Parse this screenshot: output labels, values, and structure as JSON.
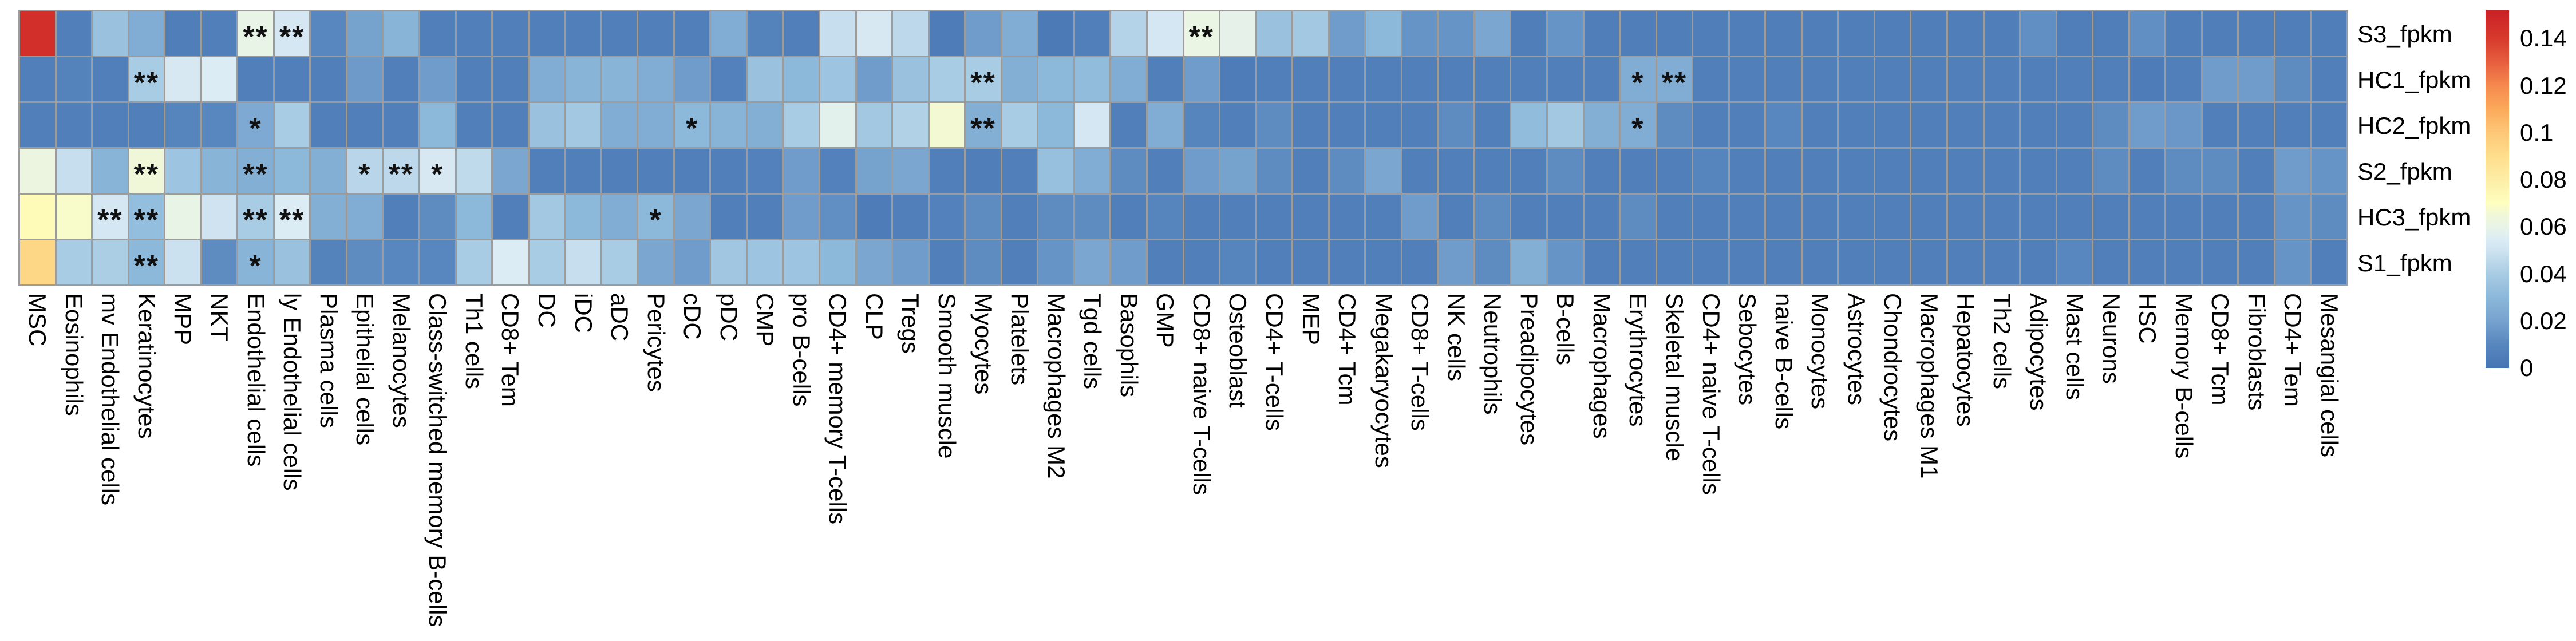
{
  "chart_data": {
    "type": "heatmap",
    "title": "",
    "legend_position": "right",
    "grid_line_color": "#9c9c9c",
    "rows": [
      "S3_fpkm",
      "HC1_fpkm",
      "HC2_fpkm",
      "S2_fpkm",
      "HC3_fpkm",
      "S1_fpkm"
    ],
    "columns": [
      "MSC",
      "Eosinophils",
      "mv Endothelial cells",
      "Keratinocytes",
      "MPP",
      "NKT",
      "Endothelial cells",
      "ly Endothelial cells",
      "Plasma cells",
      "Epithelial cells",
      "Melanocytes",
      "Class-switched memory B-cells",
      "Th1 cells",
      "CD8+ Tem",
      "DC",
      "iDC",
      "aDC",
      "Pericytes",
      "cDC",
      "pDC",
      "CMP",
      "pro B-cells",
      "CD4+ memory T-cells",
      "CLP",
      "Tregs",
      "Smooth muscle",
      "Myocytes",
      "Platelets",
      "Macrophages M2",
      "Tgd cells",
      "Basophils",
      "GMP",
      "CD8+ naive T-cells",
      "Osteoblast",
      "CD4+ T-cells",
      "MEP",
      "CD4+ Tcm",
      "Megakaryocytes",
      "CD8+ T-cells",
      "NK cells",
      "Neutrophils",
      "Preadipocytes",
      "B-cells",
      "Macrophages",
      "Erythrocytes",
      "Skeletal muscle",
      "CD4+ naive T-cells",
      "Sebocytes",
      "naive B-cells",
      "Monocytes",
      "Astrocytes",
      "Chondrocytes",
      "Macrophages M1",
      "Hepatocytes",
      "Th2 cells",
      "Adipocytes",
      "Mast cells",
      "Neurons",
      "HSC",
      "Memory B-cells",
      "CD8+ Tcm",
      "Fibroblasts",
      "CD4+ Tem",
      "Mesangial cells"
    ],
    "values": [
      [
        0.145,
        0.006,
        0.035,
        0.025,
        0.005,
        0.006,
        0.06,
        0.052,
        0.01,
        0.02,
        0.028,
        0.006,
        0.006,
        0.006,
        0.006,
        0.006,
        0.006,
        0.006,
        0.006,
        0.025,
        0.008,
        0.006,
        0.048,
        0.053,
        0.045,
        0.004,
        0.018,
        0.025,
        0.003,
        0.006,
        0.043,
        0.052,
        0.061,
        0.059,
        0.035,
        0.038,
        0.018,
        0.03,
        0.015,
        0.015,
        0.022,
        0.005,
        0.015,
        0.005,
        0.005,
        0.005,
        0.005,
        0.005,
        0.005,
        0.005,
        0.005,
        0.005,
        0.005,
        0.005,
        0.005,
        0.013,
        0.005,
        0.005,
        0.013,
        0.005,
        0.005,
        0.005,
        0.005,
        0.005
      ],
      [
        0.006,
        0.008,
        0.006,
        0.04,
        0.053,
        0.055,
        0.006,
        0.006,
        0.006,
        0.017,
        0.006,
        0.018,
        0.006,
        0.006,
        0.025,
        0.028,
        0.028,
        0.025,
        0.018,
        0.007,
        0.035,
        0.03,
        0.036,
        0.018,
        0.035,
        0.04,
        0.04,
        0.026,
        0.03,
        0.032,
        0.025,
        0.006,
        0.018,
        0.004,
        0.006,
        0.006,
        0.006,
        0.006,
        0.006,
        0.006,
        0.006,
        0.006,
        0.006,
        0.006,
        0.025,
        0.025,
        0.006,
        0.006,
        0.006,
        0.006,
        0.006,
        0.006,
        0.006,
        0.006,
        0.006,
        0.006,
        0.006,
        0.006,
        0.004,
        0.006,
        0.018,
        0.018,
        0.012,
        0.006
      ],
      [
        0.006,
        0.006,
        0.006,
        0.006,
        0.009,
        0.01,
        0.023,
        0.04,
        0.006,
        0.006,
        0.006,
        0.03,
        0.006,
        0.006,
        0.035,
        0.038,
        0.025,
        0.025,
        0.03,
        0.028,
        0.026,
        0.04,
        0.058,
        0.038,
        0.042,
        0.066,
        0.026,
        0.04,
        0.03,
        0.052,
        0.006,
        0.025,
        0.009,
        0.006,
        0.012,
        0.006,
        0.006,
        0.006,
        0.006,
        0.012,
        0.006,
        0.032,
        0.038,
        0.026,
        0.025,
        0.012,
        0.006,
        0.006,
        0.01,
        0.006,
        0.006,
        0.006,
        0.006,
        0.006,
        0.006,
        0.006,
        0.006,
        0.012,
        0.018,
        0.016,
        0.006,
        0.006,
        0.006,
        0.006
      ],
      [
        0.062,
        0.048,
        0.028,
        0.065,
        0.036,
        0.028,
        0.026,
        0.03,
        0.026,
        0.044,
        0.045,
        0.053,
        0.046,
        0.022,
        0.006,
        0.006,
        0.006,
        0.006,
        0.006,
        0.006,
        0.007,
        0.018,
        0.007,
        0.02,
        0.022,
        0.006,
        0.005,
        0.006,
        0.034,
        0.025,
        0.012,
        0.006,
        0.018,
        0.02,
        0.012,
        0.006,
        0.012,
        0.022,
        0.006,
        0.006,
        0.006,
        0.006,
        0.012,
        0.006,
        0.006,
        0.006,
        0.009,
        0.006,
        0.006,
        0.006,
        0.006,
        0.006,
        0.006,
        0.006,
        0.006,
        0.006,
        0.006,
        0.012,
        0.006,
        0.012,
        0.012,
        0.006,
        0.018,
        0.015
      ],
      [
        0.073,
        0.068,
        0.052,
        0.033,
        0.06,
        0.05,
        0.04,
        0.055,
        0.026,
        0.025,
        0.006,
        0.012,
        0.03,
        0.006,
        0.038,
        0.03,
        0.025,
        0.03,
        0.022,
        0.006,
        0.006,
        0.018,
        0.013,
        0.004,
        0.006,
        0.007,
        0.012,
        0.006,
        0.012,
        0.012,
        0.006,
        0.009,
        0.006,
        0.006,
        0.006,
        0.006,
        0.006,
        0.006,
        0.018,
        0.006,
        0.012,
        0.006,
        0.006,
        0.006,
        0.012,
        0.006,
        0.006,
        0.006,
        0.006,
        0.006,
        0.006,
        0.006,
        0.006,
        0.006,
        0.006,
        0.006,
        0.006,
        0.006,
        0.006,
        0.006,
        0.006,
        0.006,
        0.015,
        0.012
      ],
      [
        0.093,
        0.04,
        0.041,
        0.03,
        0.049,
        0.012,
        0.028,
        0.035,
        0.008,
        0.012,
        0.01,
        0.01,
        0.04,
        0.055,
        0.04,
        0.048,
        0.04,
        0.022,
        0.018,
        0.037,
        0.036,
        0.036,
        0.03,
        0.022,
        0.018,
        0.006,
        0.012,
        0.006,
        0.015,
        0.022,
        0.018,
        0.006,
        0.006,
        0.009,
        0.006,
        0.006,
        0.006,
        0.006,
        0.006,
        0.018,
        0.012,
        0.026,
        0.015,
        0.006,
        0.006,
        0.006,
        0.006,
        0.006,
        0.006,
        0.006,
        0.006,
        0.006,
        0.006,
        0.006,
        0.006,
        0.006,
        0.01,
        0.006,
        0.006,
        0.006,
        0.006,
        0.006,
        0.015,
        0.006
      ]
    ],
    "significance": [
      {
        "row": 0,
        "col": 6,
        "stars": "**"
      },
      {
        "row": 0,
        "col": 7,
        "stars": "**"
      },
      {
        "row": 0,
        "col": 32,
        "stars": "**"
      },
      {
        "row": 1,
        "col": 3,
        "stars": "**"
      },
      {
        "row": 1,
        "col": 26,
        "stars": "**"
      },
      {
        "row": 1,
        "col": 44,
        "stars": "*"
      },
      {
        "row": 1,
        "col": 45,
        "stars": "**"
      },
      {
        "row": 2,
        "col": 6,
        "stars": "*"
      },
      {
        "row": 2,
        "col": 18,
        "stars": "*"
      },
      {
        "row": 2,
        "col": 26,
        "stars": "**"
      },
      {
        "row": 2,
        "col": 44,
        "stars": "*"
      },
      {
        "row": 3,
        "col": 3,
        "stars": "**"
      },
      {
        "row": 3,
        "col": 6,
        "stars": "**"
      },
      {
        "row": 3,
        "col": 9,
        "stars": "*"
      },
      {
        "row": 3,
        "col": 10,
        "stars": "**"
      },
      {
        "row": 3,
        "col": 11,
        "stars": "*"
      },
      {
        "row": 4,
        "col": 2,
        "stars": "**"
      },
      {
        "row": 4,
        "col": 3,
        "stars": "**"
      },
      {
        "row": 4,
        "col": 6,
        "stars": "**"
      },
      {
        "row": 4,
        "col": 7,
        "stars": "**"
      },
      {
        "row": 4,
        "col": 17,
        "stars": "*"
      },
      {
        "row": 5,
        "col": 3,
        "stars": "**"
      },
      {
        "row": 5,
        "col": 6,
        "stars": "*"
      }
    ]
  },
  "colorbar": {
    "vmin": 0,
    "vmax": 0.152,
    "ticks": [
      0,
      0.02,
      0.04,
      0.06,
      0.08,
      0.1,
      0.12,
      0.14
    ],
    "tick_labels": [
      "0",
      "0.02",
      "0.04",
      "0.06",
      "0.08",
      "0.1",
      "0.12",
      "0.14"
    ],
    "stops": [
      {
        "v": 0.0,
        "c": "#4575b4"
      },
      {
        "v": 0.01,
        "c": "#5886be"
      },
      {
        "v": 0.02,
        "c": "#76a2ce"
      },
      {
        "v": 0.03,
        "c": "#8cb8da"
      },
      {
        "v": 0.04,
        "c": "#a8cce4"
      },
      {
        "v": 0.05,
        "c": "#cfe3f0"
      },
      {
        "v": 0.055,
        "c": "#dcecf5"
      },
      {
        "v": 0.06,
        "c": "#e8f4e6"
      },
      {
        "v": 0.065,
        "c": "#f0f7d8"
      },
      {
        "v": 0.07,
        "c": "#feffc0"
      },
      {
        "v": 0.08,
        "c": "#fdeda6"
      },
      {
        "v": 0.09,
        "c": "#fede8c"
      },
      {
        "v": 0.1,
        "c": "#fdc877"
      },
      {
        "v": 0.11,
        "c": "#fca95b"
      },
      {
        "v": 0.12,
        "c": "#f5894e"
      },
      {
        "v": 0.13,
        "c": "#e65e3e"
      },
      {
        "v": 0.14,
        "c": "#d73a2d"
      },
      {
        "v": 0.152,
        "c": "#cb2026"
      }
    ]
  }
}
